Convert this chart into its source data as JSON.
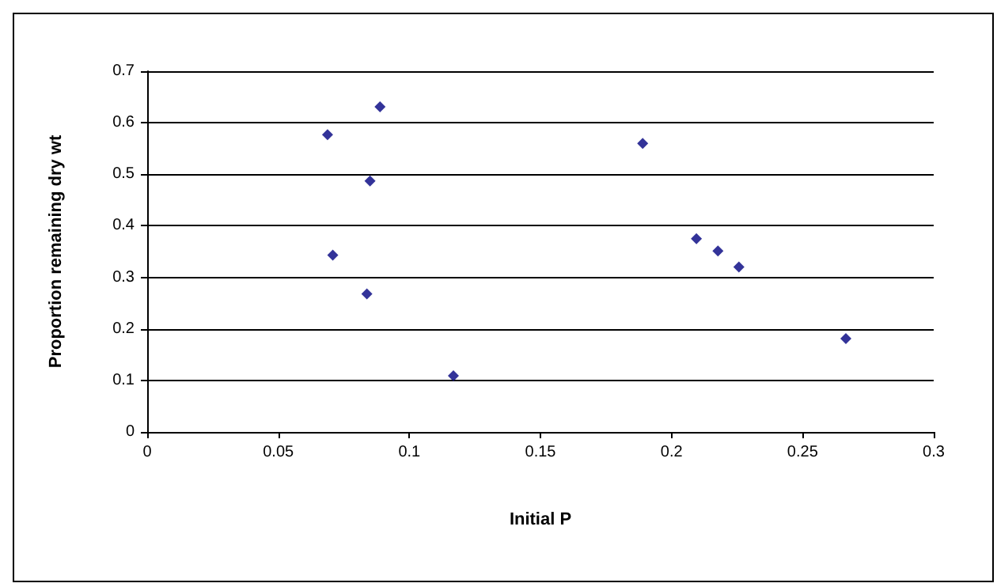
{
  "chart_data": {
    "type": "scatter",
    "xlabel": "Initial P",
    "ylabel": "Proportion remaining dry wt",
    "x": [
      0.0888,
      0.0688,
      0.085,
      0.0708,
      0.0838,
      0.1168,
      0.189,
      0.2095,
      0.2177,
      0.2257,
      0.2665
    ],
    "series": [
      {
        "color": "#000080",
        "values": [
          0.631,
          0.577,
          0.487,
          0.343,
          0.268,
          0.109,
          0.56,
          0.375,
          0.351,
          0.32,
          0.181
        ]
      }
    ],
    "xlim": [
      0,
      0.3
    ],
    "xticks": [
      0,
      0.05,
      0.1,
      0.15,
      0.2,
      0.25,
      0.3
    ],
    "ylim": [
      0,
      0.7
    ],
    "yticks": [
      0,
      0.1,
      0.2,
      0.3,
      0.4,
      0.5,
      0.6,
      0.7
    ],
    "grid": "y",
    "marker": "diamond"
  }
}
